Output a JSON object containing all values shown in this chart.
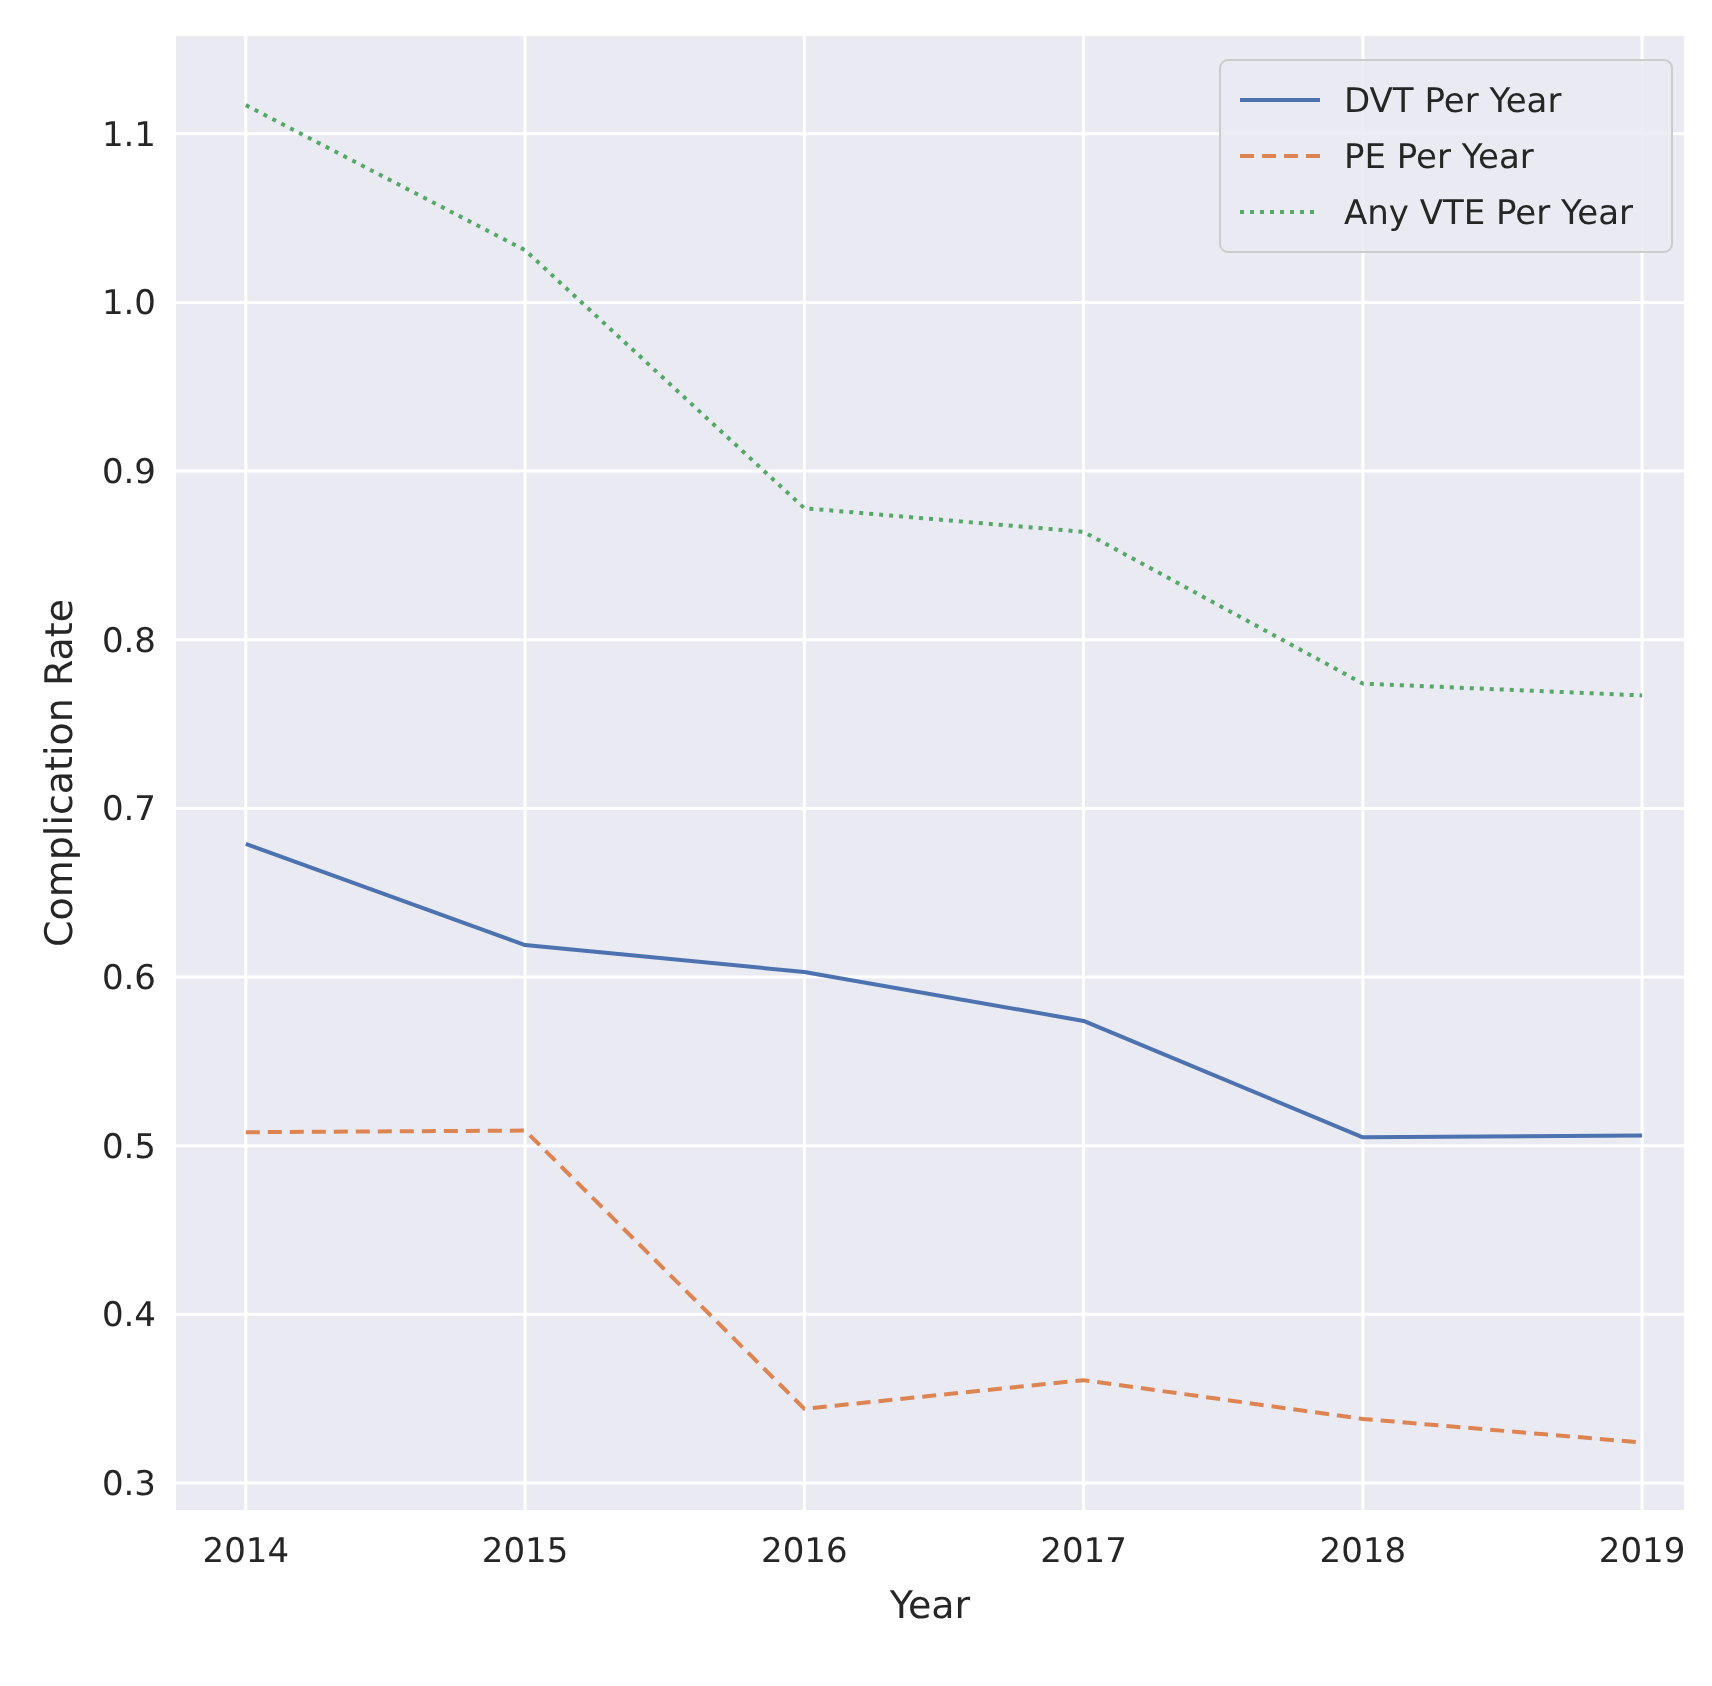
{
  "chart_data": {
    "type": "line",
    "xlabel": "Year",
    "ylabel": "Complication Rate",
    "x": [
      2014,
      2015,
      2016,
      2017,
      2018,
      2019
    ],
    "xlim": [
      2013.75,
      2019.15
    ],
    "xticks": [
      2014,
      2015,
      2016,
      2017,
      2018,
      2019
    ],
    "ylim": [
      0.284,
      1.158
    ],
    "yticks": [
      {
        "value": 0.3,
        "label": "0.3"
      },
      {
        "value": 0.4,
        "label": "0.4"
      },
      {
        "value": 0.5,
        "label": "0.5"
      },
      {
        "value": 0.6,
        "label": "0.6"
      },
      {
        "value": 0.7,
        "label": "0.7"
      },
      {
        "value": 0.8,
        "label": "0.8"
      },
      {
        "value": 0.9,
        "label": "0.9"
      },
      {
        "value": 1.0,
        "label": "1.0"
      },
      {
        "value": 1.1,
        "label": "1.1"
      }
    ],
    "grid": true,
    "legend": "top right",
    "series": [
      {
        "name": "DVT Per Year",
        "color": "#4c72b0",
        "line_style": "solid",
        "values": [
          0.679,
          0.619,
          0.603,
          0.574,
          0.505,
          0.506
        ]
      },
      {
        "name": "PE Per Year",
        "color": "#dd8452",
        "line_style": "dashed",
        "values": [
          0.508,
          0.509,
          0.344,
          0.361,
          0.338,
          0.324
        ]
      },
      {
        "name": "Any VTE Per Year",
        "color": "#55a868",
        "line_style": "dotted",
        "values": [
          1.117,
          1.031,
          0.878,
          0.864,
          0.774,
          0.767
        ]
      }
    ]
  }
}
